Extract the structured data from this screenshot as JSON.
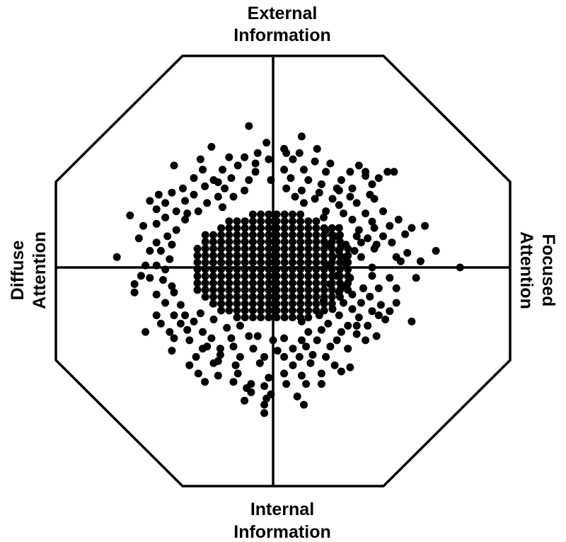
{
  "chart_data": {
    "type": "scatter",
    "axes": {
      "top": [
        "External",
        "Information"
      ],
      "bottom": [
        "Internal",
        "Information"
      ],
      "left": [
        "Diffuse",
        "Attention"
      ],
      "right": [
        "Focused",
        "Attention"
      ]
    },
    "xlim": [
      -1,
      1
    ],
    "ylim": [
      -1,
      1
    ],
    "grid": false,
    "legend": "none",
    "colors": {
      "points": "#000000",
      "frame": "#000000",
      "background": "#ffffff"
    },
    "points": [
      [
        -0.11,
        0.68
      ],
      [
        0.13,
        0.63
      ],
      [
        -0.03,
        0.6
      ],
      [
        0.05,
        0.57
      ],
      [
        0.2,
        0.57
      ],
      [
        -0.28,
        0.58
      ],
      [
        -0.2,
        0.53
      ],
      [
        -0.13,
        0.53
      ],
      [
        -0.07,
        0.55
      ],
      [
        -0.02,
        0.52
      ],
      [
        0.09,
        0.52
      ],
      [
        0.19,
        0.51
      ],
      [
        0.26,
        0.5
      ],
      [
        0.39,
        0.49
      ],
      [
        -0.45,
        0.49
      ],
      [
        -0.32,
        0.47
      ],
      [
        -0.23,
        0.47
      ],
      [
        -0.16,
        0.49
      ],
      [
        -0.08,
        0.46
      ],
      [
        0.05,
        0.47
      ],
      [
        0.14,
        0.47
      ],
      [
        0.24,
        0.46
      ],
      [
        0.35,
        0.46
      ],
      [
        0.42,
        0.46
      ],
      [
        0.52,
        0.46
      ],
      [
        0.55,
        0.46
      ],
      [
        -0.36,
        0.43
      ],
      [
        -0.27,
        0.42
      ],
      [
        -0.19,
        0.43
      ],
      [
        -0.11,
        0.42
      ],
      [
        -0.01,
        0.42
      ],
      [
        0.08,
        0.43
      ],
      [
        0.16,
        0.42
      ],
      [
        0.22,
        0.4
      ],
      [
        0.31,
        0.42
      ],
      [
        0.42,
        0.44
      ],
      [
        0.48,
        0.43
      ],
      [
        -0.41,
        0.38
      ],
      [
        -0.31,
        0.39
      ],
      [
        -0.22,
        0.38
      ],
      [
        -0.13,
        0.37
      ],
      [
        0.06,
        0.38
      ],
      [
        0.13,
        0.37
      ],
      [
        0.21,
        0.36
      ],
      [
        0.3,
        0.37
      ],
      [
        0.36,
        0.38
      ],
      [
        0.45,
        0.4
      ],
      [
        -0.52,
        0.35
      ],
      [
        -0.46,
        0.36
      ],
      [
        -0.36,
        0.35
      ],
      [
        -0.25,
        0.34
      ],
      [
        -0.18,
        0.34
      ],
      [
        0.1,
        0.34
      ],
      [
        0.19,
        0.33
      ],
      [
        0.27,
        0.33
      ],
      [
        0.35,
        0.34
      ],
      [
        -0.56,
        0.32
      ],
      [
        -0.49,
        0.31
      ],
      [
        -0.4,
        0.32
      ],
      [
        -0.3,
        0.31
      ],
      [
        -0.23,
        0.29
      ],
      [
        0.14,
        0.31
      ],
      [
        0.3,
        0.3
      ],
      [
        0.38,
        0.31
      ],
      [
        0.46,
        0.33
      ],
      [
        -0.53,
        0.28
      ],
      [
        -0.44,
        0.27
      ],
      [
        -0.39,
        0.26
      ],
      [
        -0.34,
        0.27
      ],
      [
        0.24,
        0.27
      ],
      [
        0.32,
        0.26
      ],
      [
        0.42,
        0.26
      ],
      [
        0.5,
        0.27
      ],
      [
        -0.65,
        0.25
      ],
      [
        -0.49,
        0.24
      ],
      [
        -0.4,
        0.23
      ],
      [
        0.23,
        0.24
      ],
      [
        0.36,
        0.23
      ],
      [
        0.45,
        0.22
      ],
      [
        0.57,
        0.23
      ],
      [
        -0.59,
        0.2
      ],
      [
        -0.53,
        0.21
      ],
      [
        -0.44,
        0.18
      ],
      [
        0.24,
        0.18
      ],
      [
        0.3,
        0.19
      ],
      [
        0.39,
        0.18
      ],
      [
        0.46,
        0.19
      ],
      [
        0.53,
        0.2
      ],
      [
        0.63,
        0.19
      ],
      [
        0.69,
        0.2
      ],
      [
        -0.48,
        0.15
      ],
      [
        0.28,
        0.15
      ],
      [
        0.38,
        0.15
      ],
      [
        0.43,
        0.14
      ],
      [
        0.5,
        0.15
      ],
      [
        0.6,
        0.16
      ],
      [
        -0.53,
        0.12
      ],
      [
        -0.46,
        0.11
      ],
      [
        0.26,
        0.11
      ],
      [
        0.33,
        0.11
      ],
      [
        0.4,
        0.12
      ],
      [
        0.47,
        0.11
      ],
      [
        0.54,
        0.12
      ],
      [
        -0.56,
        0.08
      ],
      [
        -0.51,
        0.08
      ],
      [
        0.3,
        0.08
      ],
      [
        0.37,
        0.08
      ],
      [
        0.46,
        0.09
      ],
      [
        0.61,
        0.07
      ],
      [
        0.74,
        0.08
      ],
      [
        -0.71,
        0.05
      ],
      [
        -0.47,
        0.04
      ],
      [
        0.27,
        0.05
      ],
      [
        0.33,
        0.05
      ],
      [
        0.4,
        0.05
      ],
      [
        0.56,
        0.05
      ],
      [
        0.58,
        0.03
      ],
      [
        0.85,
        0.0
      ],
      [
        -0.58,
        0.01
      ],
      [
        -0.53,
        0.01
      ],
      [
        -0.49,
        -0.01
      ],
      [
        0.26,
        0.01
      ],
      [
        0.33,
        0.02
      ],
      [
        0.45,
        0.0
      ],
      [
        0.67,
        0.03
      ],
      [
        -0.56,
        -0.05
      ],
      [
        -0.5,
        -0.06
      ],
      [
        0.29,
        -0.04
      ],
      [
        0.35,
        -0.05
      ],
      [
        0.45,
        -0.04
      ],
      [
        0.53,
        -0.05
      ],
      [
        0.65,
        -0.05
      ],
      [
        -0.63,
        -0.08
      ],
      [
        -0.46,
        -0.09
      ],
      [
        0.26,
        -0.08
      ],
      [
        0.33,
        -0.09
      ],
      [
        0.41,
        -0.1
      ],
      [
        0.48,
        -0.1
      ],
      [
        0.56,
        -0.1
      ],
      [
        -0.63,
        -0.12
      ],
      [
        -0.53,
        -0.13
      ],
      [
        -0.45,
        -0.12
      ],
      [
        0.3,
        -0.12
      ],
      [
        0.36,
        -0.13
      ],
      [
        0.44,
        -0.14
      ],
      [
        -0.49,
        -0.17
      ],
      [
        0.23,
        -0.16
      ],
      [
        0.32,
        -0.17
      ],
      [
        0.4,
        -0.17
      ],
      [
        0.49,
        -0.18
      ],
      [
        -0.42,
        -0.18
      ],
      [
        0.27,
        -0.2
      ],
      [
        0.36,
        -0.2
      ],
      [
        0.45,
        -0.21
      ],
      [
        0.53,
        -0.21
      ],
      [
        -0.53,
        -0.23
      ],
      [
        -0.45,
        -0.23
      ],
      [
        -0.4,
        -0.23
      ],
      [
        -0.33,
        -0.22
      ],
      [
        0.21,
        -0.23
      ],
      [
        0.3,
        -0.23
      ],
      [
        0.39,
        -0.24
      ],
      [
        0.48,
        -0.23
      ],
      [
        0.51,
        -0.25
      ],
      [
        0.63,
        -0.26
      ],
      [
        -0.51,
        -0.27
      ],
      [
        -0.42,
        -0.27
      ],
      [
        -0.36,
        -0.26
      ],
      [
        -0.27,
        -0.25
      ],
      [
        0.13,
        -0.26
      ],
      [
        0.25,
        -0.27
      ],
      [
        0.34,
        -0.28
      ],
      [
        0.43,
        -0.28
      ],
      [
        -0.58,
        -0.31
      ],
      [
        -0.47,
        -0.31
      ],
      [
        -0.39,
        -0.3
      ],
      [
        -0.32,
        -0.31
      ],
      [
        -0.21,
        -0.29
      ],
      [
        -0.15,
        -0.28
      ],
      [
        0.16,
        -0.31
      ],
      [
        0.22,
        -0.3
      ],
      [
        0.31,
        -0.31
      ],
      [
        0.38,
        -0.32
      ],
      [
        0.47,
        -0.33
      ],
      [
        -0.45,
        -0.34
      ],
      [
        -0.38,
        -0.35
      ],
      [
        -0.28,
        -0.34
      ],
      [
        -0.19,
        -0.34
      ],
      [
        -0.11,
        -0.33
      ],
      [
        -0.07,
        -0.33
      ],
      [
        0.05,
        -0.34
      ],
      [
        0.13,
        -0.35
      ],
      [
        0.2,
        -0.35
      ],
      [
        0.29,
        -0.35
      ],
      [
        0.42,
        -0.35
      ],
      [
        -0.46,
        -0.4
      ],
      [
        -0.32,
        -0.39
      ],
      [
        -0.24,
        -0.39
      ],
      [
        -0.18,
        -0.38
      ],
      [
        -0.09,
        -0.39
      ],
      [
        0.02,
        -0.4
      ],
      [
        0.09,
        -0.39
      ],
      [
        0.15,
        -0.38
      ],
      [
        0.26,
        -0.38
      ],
      [
        0.34,
        -0.39
      ],
      [
        -0.35,
        -0.43
      ],
      [
        -0.24,
        -0.42
      ],
      [
        -0.15,
        -0.43
      ],
      [
        -0.04,
        -0.43
      ],
      [
        0.05,
        -0.43
      ],
      [
        0.12,
        -0.43
      ],
      [
        0.18,
        -0.42
      ],
      [
        0.24,
        -0.43
      ],
      [
        -0.38,
        -0.47
      ],
      [
        -0.27,
        -0.46
      ],
      [
        -0.17,
        -0.47
      ],
      [
        -0.06,
        -0.46
      ],
      [
        0.09,
        -0.47
      ],
      [
        0.17,
        -0.46
      ],
      [
        0.28,
        -0.47
      ],
      [
        0.35,
        -0.48
      ],
      [
        -0.34,
        -0.51
      ],
      [
        -0.25,
        -0.52
      ],
      [
        -0.16,
        -0.51
      ],
      [
        -0.02,
        -0.53
      ],
      [
        0.05,
        -0.51
      ],
      [
        0.13,
        -0.52
      ],
      [
        0.22,
        -0.51
      ],
      [
        0.31,
        -0.5
      ],
      [
        -0.31,
        -0.55
      ],
      [
        -0.18,
        -0.55
      ],
      [
        -0.1,
        -0.56
      ],
      [
        -0.04,
        -0.57
      ],
      [
        0.06,
        -0.56
      ],
      [
        0.15,
        -0.56
      ],
      [
        -0.1,
        -0.6
      ],
      [
        -0.01,
        -0.61
      ],
      [
        -0.13,
        -0.64
      ],
      [
        -0.04,
        -0.66
      ],
      [
        0.14,
        -0.66
      ],
      [
        -0.04,
        -0.7
      ],
      [
        0.11,
        -0.62
      ],
      [
        -0.03,
        -0.63
      ],
      [
        -0.12,
        -0.58
      ],
      [
        0.22,
        -0.56
      ],
      [
        -0.25,
        -0.45
      ],
      [
        -0.3,
        -0.38
      ],
      [
        0.0,
        -0.35
      ],
      [
        0.38,
        -0.28
      ],
      [
        0.41,
        -0.1
      ],
      [
        -0.61,
        0.14
      ],
      [
        -0.6,
        -0.04
      ],
      [
        0.56,
        -0.17
      ],
      [
        0.44,
        0.35
      ],
      [
        0.29,
        0.38
      ],
      [
        -0.08,
        0.5
      ],
      [
        0.12,
        0.55
      ],
      [
        -0.33,
        0.52
      ],
      [
        0.06,
        0.55
      ],
      [
        -0.25,
        0.41
      ]
    ]
  }
}
